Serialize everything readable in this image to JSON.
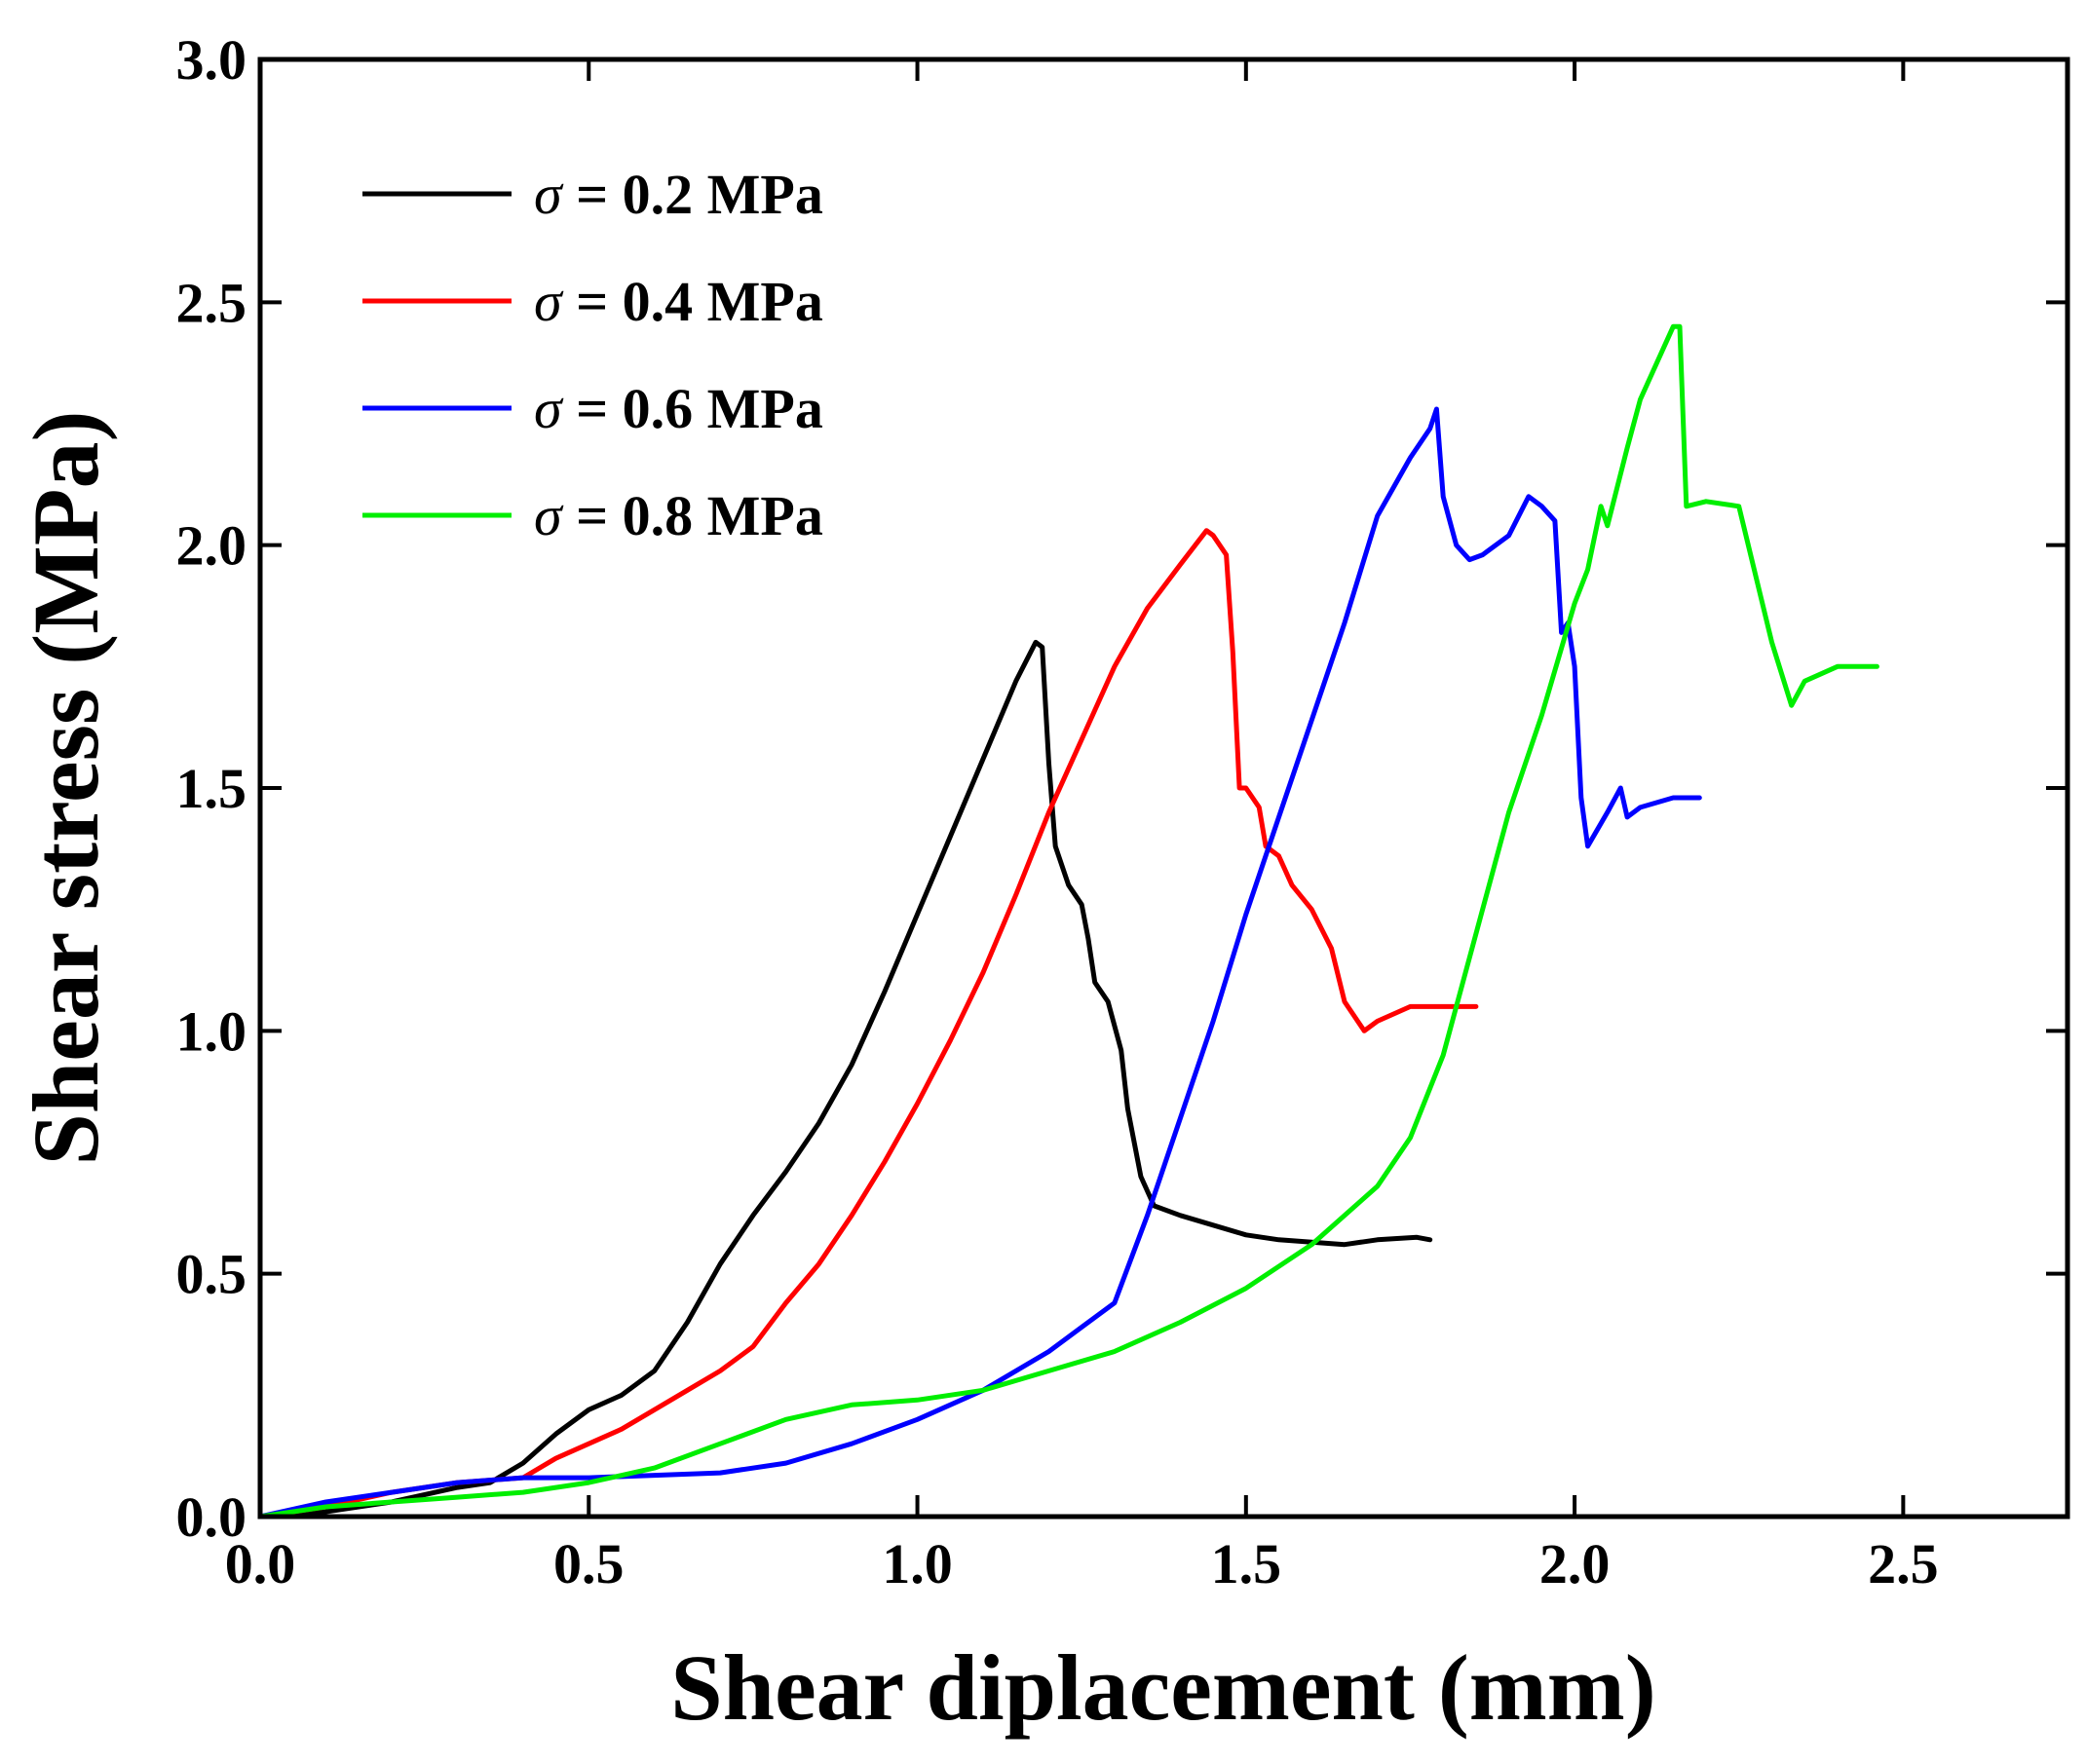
{
  "chart_data": {
    "type": "line",
    "title": "",
    "xlabel": "Shear diplacement (mm)",
    "ylabel": "Shear stress (MPa)",
    "xlim": [
      0,
      2.75
    ],
    "ylim": [
      0,
      3.0
    ],
    "xticks": [
      "0.0",
      "0.5",
      "1.0",
      "1.5",
      "2.0",
      "2.5"
    ],
    "yticks": [
      "0.0",
      "0.5",
      "1.0",
      "1.5",
      "2.0",
      "2.5",
      "3.0"
    ],
    "legend_position": "top-left",
    "series": [
      {
        "name": "σ = 0.2 MPa",
        "symbol": "σ",
        "label_suffix": " = 0.2 MPa",
        "color": "#000000",
        "points": [
          [
            0,
            0
          ],
          [
            0.1,
            0.01
          ],
          [
            0.2,
            0.03
          ],
          [
            0.3,
            0.06
          ],
          [
            0.35,
            0.07
          ],
          [
            0.4,
            0.11
          ],
          [
            0.45,
            0.17
          ],
          [
            0.5,
            0.22
          ],
          [
            0.55,
            0.25
          ],
          [
            0.6,
            0.3
          ],
          [
            0.65,
            0.4
          ],
          [
            0.7,
            0.52
          ],
          [
            0.75,
            0.62
          ],
          [
            0.8,
            0.71
          ],
          [
            0.85,
            0.81
          ],
          [
            0.9,
            0.93
          ],
          [
            0.95,
            1.08
          ],
          [
            1.0,
            1.24
          ],
          [
            1.05,
            1.4
          ],
          [
            1.1,
            1.56
          ],
          [
            1.15,
            1.72
          ],
          [
            1.18,
            1.8
          ],
          [
            1.19,
            1.79
          ],
          [
            1.2,
            1.55
          ],
          [
            1.21,
            1.38
          ],
          [
            1.23,
            1.3
          ],
          [
            1.25,
            1.26
          ],
          [
            1.26,
            1.19
          ],
          [
            1.27,
            1.1
          ],
          [
            1.29,
            1.06
          ],
          [
            1.31,
            0.96
          ],
          [
            1.32,
            0.84
          ],
          [
            1.34,
            0.7
          ],
          [
            1.36,
            0.64
          ],
          [
            1.4,
            0.62
          ],
          [
            1.45,
            0.6
          ],
          [
            1.5,
            0.58
          ],
          [
            1.55,
            0.57
          ],
          [
            1.6,
            0.565
          ],
          [
            1.65,
            0.56
          ],
          [
            1.7,
            0.57
          ],
          [
            1.76,
            0.575
          ],
          [
            1.78,
            0.57
          ]
        ]
      },
      {
        "name": "σ = 0.4 MPa",
        "symbol": "σ",
        "label_suffix": " = 0.4 MPa",
        "color": "#ff0000",
        "points": [
          [
            0,
            0
          ],
          [
            0.1,
            0.02
          ],
          [
            0.2,
            0.05
          ],
          [
            0.3,
            0.07
          ],
          [
            0.35,
            0.075
          ],
          [
            0.4,
            0.08
          ],
          [
            0.45,
            0.12
          ],
          [
            0.5,
            0.15
          ],
          [
            0.55,
            0.18
          ],
          [
            0.6,
            0.22
          ],
          [
            0.65,
            0.26
          ],
          [
            0.7,
            0.3
          ],
          [
            0.75,
            0.35
          ],
          [
            0.8,
            0.44
          ],
          [
            0.85,
            0.52
          ],
          [
            0.9,
            0.62
          ],
          [
            0.95,
            0.73
          ],
          [
            1.0,
            0.85
          ],
          [
            1.05,
            0.98
          ],
          [
            1.1,
            1.12
          ],
          [
            1.15,
            1.28
          ],
          [
            1.2,
            1.45
          ],
          [
            1.25,
            1.6
          ],
          [
            1.3,
            1.75
          ],
          [
            1.35,
            1.87
          ],
          [
            1.4,
            1.96
          ],
          [
            1.44,
            2.03
          ],
          [
            1.45,
            2.02
          ],
          [
            1.47,
            1.98
          ],
          [
            1.48,
            1.78
          ],
          [
            1.49,
            1.5
          ],
          [
            1.5,
            1.5
          ],
          [
            1.51,
            1.48
          ],
          [
            1.52,
            1.46
          ],
          [
            1.53,
            1.38
          ],
          [
            1.55,
            1.36
          ],
          [
            1.57,
            1.3
          ],
          [
            1.6,
            1.25
          ],
          [
            1.63,
            1.17
          ],
          [
            1.65,
            1.06
          ],
          [
            1.68,
            1.0
          ],
          [
            1.7,
            1.02
          ],
          [
            1.75,
            1.05
          ],
          [
            1.8,
            1.05
          ],
          [
            1.85,
            1.05
          ]
        ]
      },
      {
        "name": "σ = 0.6 MPa",
        "symbol": "σ",
        "label_suffix": " = 0.6 MPa",
        "color": "#0000ff",
        "points": [
          [
            0,
            0
          ],
          [
            0.1,
            0.03
          ],
          [
            0.2,
            0.05
          ],
          [
            0.3,
            0.07
          ],
          [
            0.4,
            0.08
          ],
          [
            0.5,
            0.08
          ],
          [
            0.6,
            0.085
          ],
          [
            0.7,
            0.09
          ],
          [
            0.8,
            0.11
          ],
          [
            0.9,
            0.15
          ],
          [
            1.0,
            0.2
          ],
          [
            1.1,
            0.26
          ],
          [
            1.2,
            0.34
          ],
          [
            1.25,
            0.39
          ],
          [
            1.3,
            0.44
          ],
          [
            1.35,
            0.62
          ],
          [
            1.4,
            0.82
          ],
          [
            1.45,
            1.02
          ],
          [
            1.5,
            1.24
          ],
          [
            1.55,
            1.44
          ],
          [
            1.6,
            1.64
          ],
          [
            1.65,
            1.84
          ],
          [
            1.7,
            2.06
          ],
          [
            1.75,
            2.18
          ],
          [
            1.78,
            2.24
          ],
          [
            1.79,
            2.28
          ],
          [
            1.8,
            2.1
          ],
          [
            1.82,
            2.0
          ],
          [
            1.84,
            1.97
          ],
          [
            1.86,
            1.98
          ],
          [
            1.9,
            2.02
          ],
          [
            1.93,
            2.1
          ],
          [
            1.95,
            2.08
          ],
          [
            1.97,
            2.05
          ],
          [
            1.98,
            1.82
          ],
          [
            1.99,
            1.84
          ],
          [
            2.0,
            1.75
          ],
          [
            2.01,
            1.48
          ],
          [
            2.02,
            1.38
          ],
          [
            2.05,
            1.45
          ],
          [
            2.07,
            1.5
          ],
          [
            2.08,
            1.44
          ],
          [
            2.1,
            1.46
          ],
          [
            2.15,
            1.48
          ],
          [
            2.19,
            1.48
          ]
        ]
      },
      {
        "name": "σ = 0.8 MPa",
        "symbol": "σ",
        "label_suffix": " = 0.8 MPa",
        "color": "#00ee00",
        "points": [
          [
            0,
            0
          ],
          [
            0.1,
            0.02
          ],
          [
            0.2,
            0.03
          ],
          [
            0.3,
            0.04
          ],
          [
            0.4,
            0.05
          ],
          [
            0.5,
            0.07
          ],
          [
            0.6,
            0.1
          ],
          [
            0.7,
            0.15
          ],
          [
            0.8,
            0.2
          ],
          [
            0.9,
            0.23
          ],
          [
            1.0,
            0.24
          ],
          [
            1.1,
            0.26
          ],
          [
            1.2,
            0.3
          ],
          [
            1.3,
            0.34
          ],
          [
            1.4,
            0.4
          ],
          [
            1.5,
            0.47
          ],
          [
            1.6,
            0.56
          ],
          [
            1.7,
            0.68
          ],
          [
            1.75,
            0.78
          ],
          [
            1.8,
            0.95
          ],
          [
            1.85,
            1.2
          ],
          [
            1.9,
            1.45
          ],
          [
            1.95,
            1.65
          ],
          [
            2.0,
            1.88
          ],
          [
            2.02,
            1.95
          ],
          [
            2.04,
            2.08
          ],
          [
            2.05,
            2.04
          ],
          [
            2.08,
            2.2
          ],
          [
            2.1,
            2.3
          ],
          [
            2.15,
            2.45
          ],
          [
            2.16,
            2.45
          ],
          [
            2.17,
            2.08
          ],
          [
            2.2,
            2.09
          ],
          [
            2.25,
            2.08
          ],
          [
            2.3,
            1.8
          ],
          [
            2.33,
            1.67
          ],
          [
            2.35,
            1.72
          ],
          [
            2.4,
            1.75
          ],
          [
            2.46,
            1.75
          ]
        ]
      }
    ]
  }
}
